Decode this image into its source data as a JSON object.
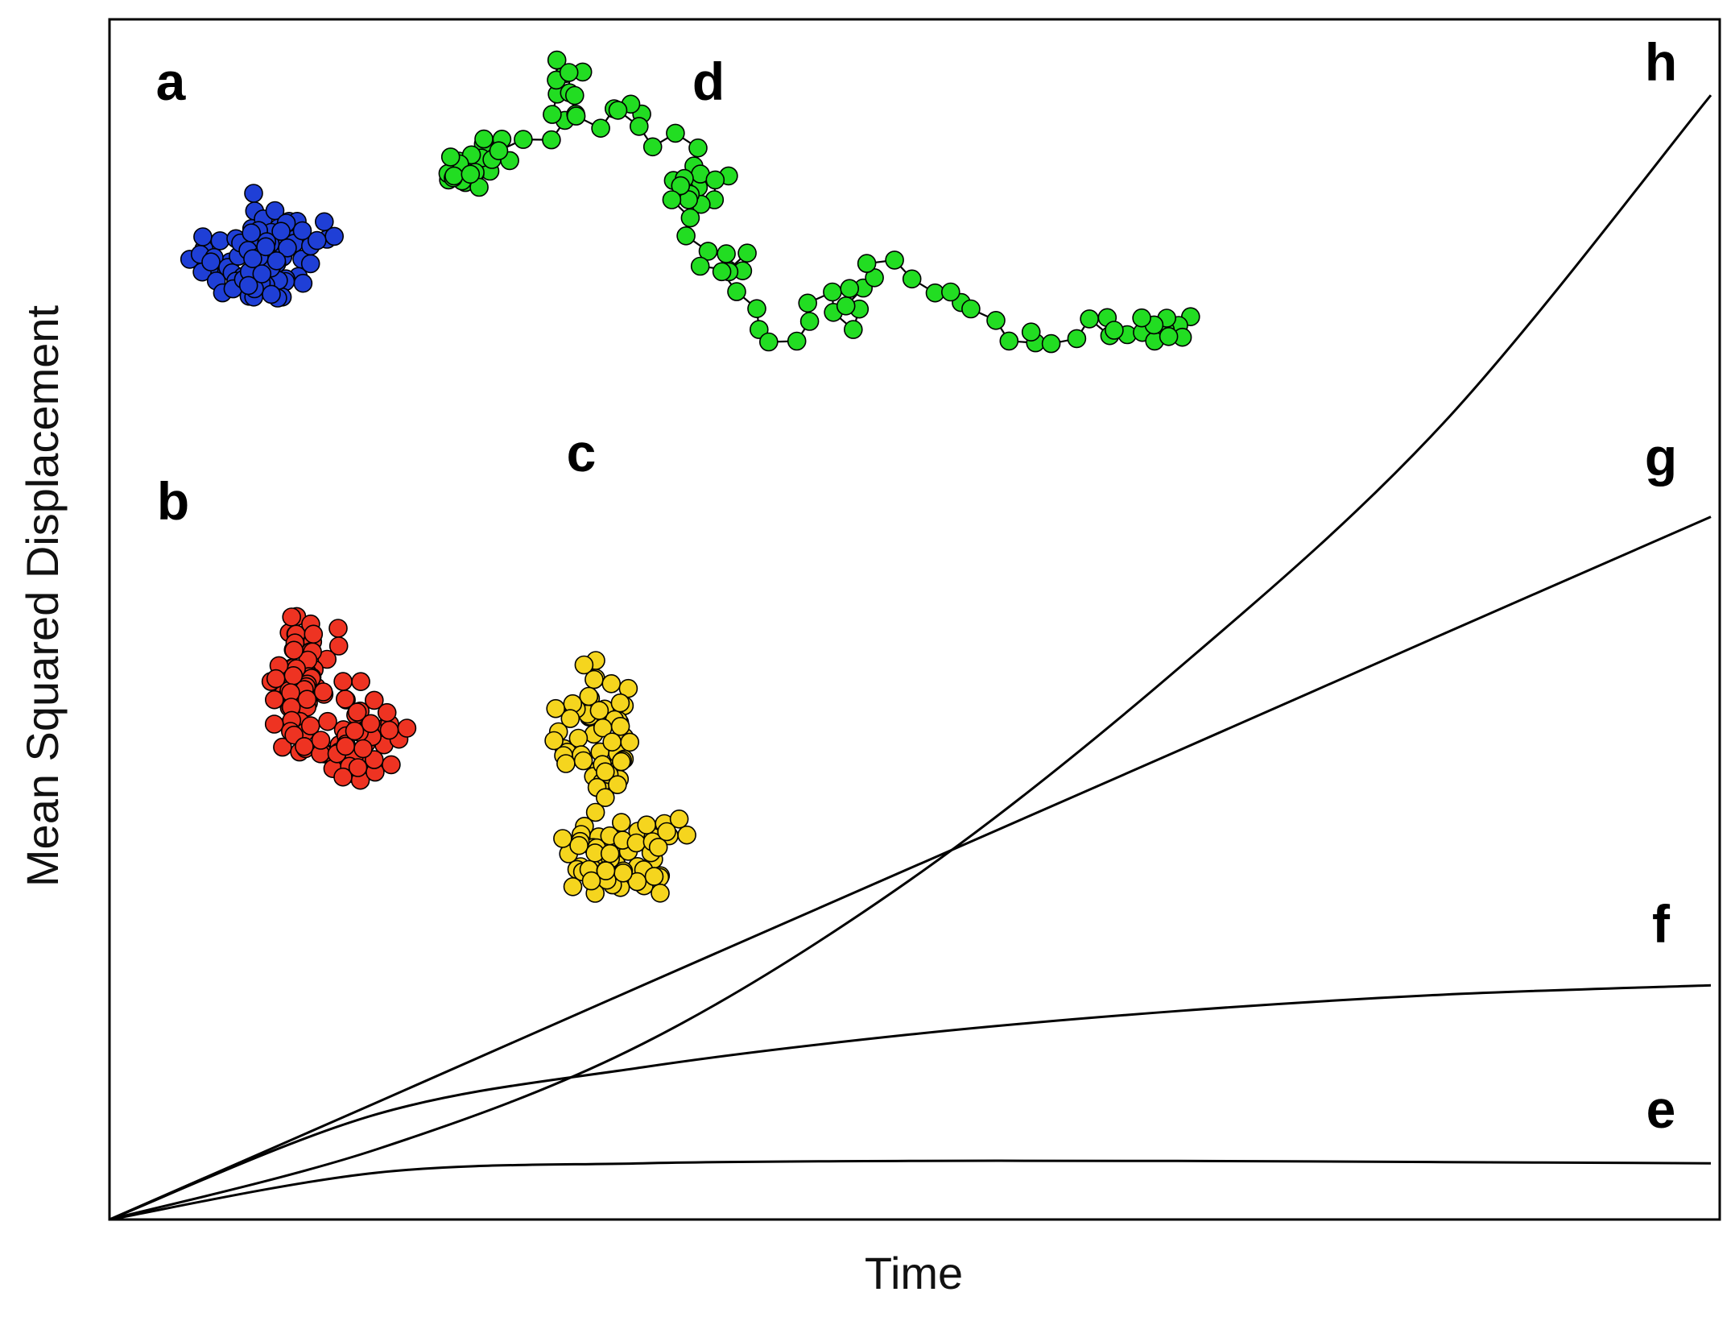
{
  "chart_data": {
    "type": "line",
    "xlabel": "Time",
    "ylabel": "Mean Squared Displacement",
    "grid": false,
    "series": [
      {
        "label": "e",
        "shape": "confined / plateau",
        "values": [
          0,
          0.04,
          0.048,
          0.05,
          0.05,
          0.049,
          0.048
        ]
      },
      {
        "label": "f",
        "shape": "subdiffusive",
        "values": [
          0,
          0.09,
          0.13,
          0.158,
          0.178,
          0.192,
          0.2
        ]
      },
      {
        "label": "g",
        "shape": "linear (diffusive)",
        "values": [
          0,
          0.1,
          0.2,
          0.3,
          0.4,
          0.5,
          0.6
        ]
      },
      {
        "label": "h",
        "shape": "superdiffusive (directed)",
        "values": [
          0,
          0.06,
          0.15,
          0.29,
          0.47,
          0.68,
          0.96
        ]
      }
    ],
    "x": [
      0,
      0.167,
      0.333,
      0.5,
      0.667,
      0.833,
      1.0
    ],
    "tracks": [
      {
        "label": "a",
        "color": "#1f3fd6"
      },
      {
        "label": "b",
        "color": "#ee3322"
      },
      {
        "label": "c",
        "color": "#f5d51e"
      },
      {
        "label": "d",
        "color": "#22dd22"
      }
    ]
  }
}
